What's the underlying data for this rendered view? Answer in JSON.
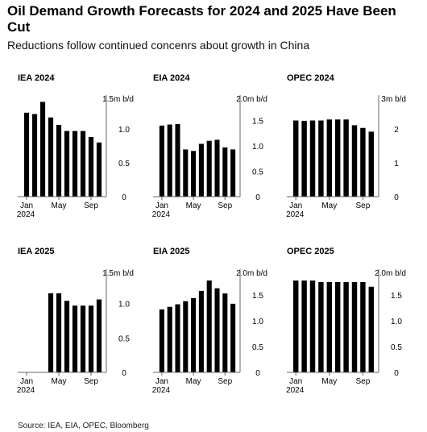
{
  "title": "Oil Demand Growth Forecasts for 2024 and 2025 Have Been Cut",
  "subtitle": "Reductions follow continued concenrs about growth in China",
  "source": "Source: IEA, EIA, OPEC, Bloomberg",
  "colors": {
    "bar": "#000000",
    "axis": "#666666",
    "text": "#000000"
  },
  "chart_data": [
    {
      "type": "bar",
      "title": "IEA 2024",
      "unit": "1.5m b/d",
      "ylim": [
        0,
        1.5
      ],
      "yticks": [
        0,
        0.5,
        1.0
      ],
      "ytick_labels": [
        "0",
        "0.5",
        "1.0"
      ],
      "xtick_labels": [
        "Jan\n2024",
        "May",
        "Sep"
      ],
      "values": [
        1.24,
        1.22,
        1.4,
        1.17,
        1.06,
        0.97,
        0.97,
        0.97,
        0.88,
        0.8
      ]
    },
    {
      "type": "bar",
      "title": "EIA 2024",
      "unit": "2.0m b/d",
      "ylim": [
        0,
        2.0
      ],
      "yticks": [
        0,
        0.5,
        1.0,
        1.5
      ],
      "ytick_labels": [
        "0",
        "0.5",
        "1.0",
        "1.5"
      ],
      "xtick_labels": [
        "Jan\n2024",
        "May",
        "Sep"
      ],
      "values": [
        1.4,
        1.42,
        1.43,
        0.93,
        0.9,
        1.04,
        1.1,
        1.12,
        0.97,
        0.93
      ]
    },
    {
      "type": "bar",
      "title": "OPEC 2024",
      "unit": "3m b/d",
      "ylim": [
        0,
        3
      ],
      "yticks": [
        0,
        1,
        2
      ],
      "ytick_labels": [
        "0",
        "1",
        "2"
      ],
      "xtick_labels": [
        "Jan\n2024",
        "May",
        "Sep"
      ],
      "values": [
        2.25,
        2.24,
        2.25,
        2.25,
        2.28,
        2.28,
        2.28,
        2.11,
        2.03,
        1.92
      ]
    },
    {
      "type": "bar",
      "title": "IEA 2025",
      "unit": "1.5m b/d",
      "ylim": [
        0,
        1.5
      ],
      "yticks": [
        0,
        0.5,
        1.0
      ],
      "ytick_labels": [
        "0",
        "0.5",
        "1.0"
      ],
      "xtick_labels": [
        "Jan\n2024",
        "May",
        "Sep"
      ],
      "values": [
        null,
        null,
        null,
        1.15,
        1.15,
        1.04,
        0.97,
        0.97,
        0.97,
        1.06
      ]
    },
    {
      "type": "bar",
      "title": "EIA 2025",
      "unit": "2.0m b/d",
      "ylim": [
        0,
        2.0
      ],
      "yticks": [
        0,
        0.5,
        1.0,
        1.5
      ],
      "ytick_labels": [
        "0",
        "0.5",
        "1.0",
        "1.5"
      ],
      "xtick_labels": [
        "Jan\n2024",
        "May",
        "Sep"
      ],
      "values": [
        1.22,
        1.27,
        1.32,
        1.38,
        1.44,
        1.58,
        1.78,
        1.63,
        1.53,
        1.33
      ]
    },
    {
      "type": "bar",
      "title": "OPEC 2025",
      "unit": "2.0m b/d",
      "ylim": [
        0,
        2.0
      ],
      "yticks": [
        0,
        0.5,
        1.0,
        1.5
      ],
      "ytick_labels": [
        "0",
        "0.5",
        "1.0",
        "1.5"
      ],
      "xtick_labels": [
        "Jan\n2024",
        "May",
        "Sep"
      ],
      "values": [
        1.78,
        1.78,
        1.78,
        1.75,
        1.75,
        1.75,
        1.75,
        1.75,
        1.75,
        1.66
      ]
    }
  ]
}
